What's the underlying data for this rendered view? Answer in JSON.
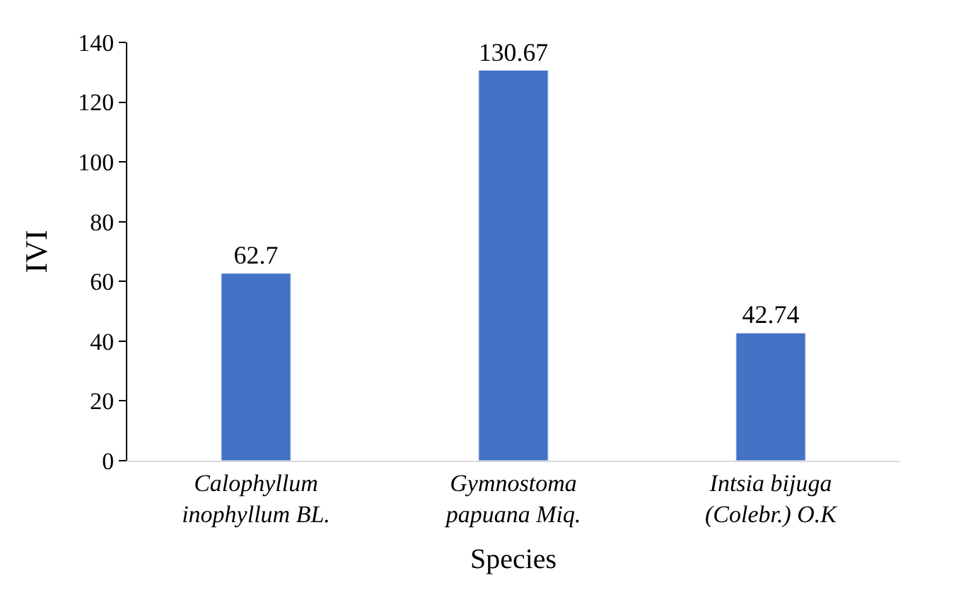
{
  "chart_data": {
    "type": "bar",
    "xlabel": "Species",
    "ylabel": "IVI",
    "categories": [
      "Calophyllum inophyllum BL.",
      "Gymnostoma papuana Miq.",
      "Intsia bijuga (Colebr.) O.K"
    ],
    "values": [
      62.7,
      130.67,
      42.74
    ],
    "color": "#4472c4",
    "ylim": [
      0,
      140
    ],
    "yticks": [
      0,
      20,
      40,
      60,
      80,
      100,
      120,
      140
    ],
    "data_labels": true
  }
}
